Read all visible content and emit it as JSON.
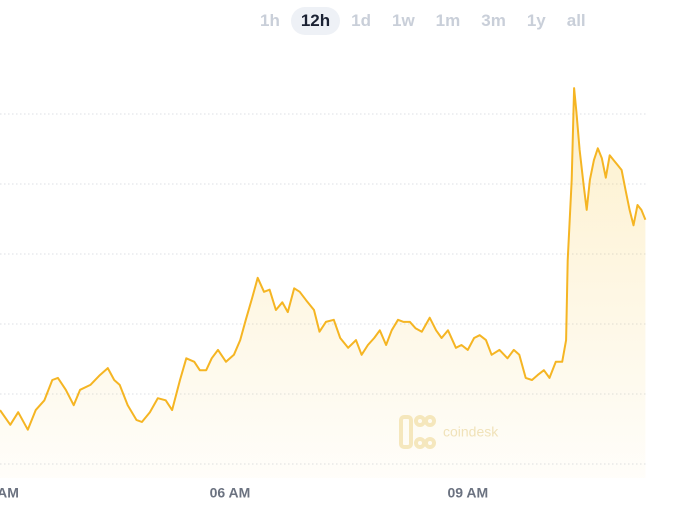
{
  "controls": {
    "ranges": [
      "1h",
      "12h",
      "1d",
      "1w",
      "1m",
      "3m",
      "1y",
      "all"
    ],
    "active": 1
  },
  "chart_data": {
    "type": "line",
    "watermark": "coindesk",
    "x": [
      3.1,
      3.23,
      3.33,
      3.45,
      3.55,
      3.66,
      3.76,
      3.83,
      3.93,
      4.03,
      4.11,
      4.24,
      4.36,
      4.46,
      4.54,
      4.61,
      4.71,
      4.82,
      4.89,
      4.99,
      5.09,
      5.19,
      5.27,
      5.37,
      5.45,
      5.55,
      5.62,
      5.7,
      5.77,
      5.85,
      5.95,
      6.05,
      6.13,
      6.2,
      6.28,
      6.35,
      6.43,
      6.5,
      6.58,
      6.66,
      6.73,
      6.81,
      6.88,
      6.96,
      7.06,
      7.13,
      7.21,
      7.31,
      7.39,
      7.49,
      7.59,
      7.66,
      7.74,
      7.82,
      7.89,
      7.97,
      8.04,
      8.12,
      8.19,
      8.27,
      8.34,
      8.42,
      8.52,
      8.6,
      8.67,
      8.75,
      8.85,
      8.92,
      9.0,
      9.08,
      9.15,
      9.23,
      9.3,
      9.4,
      9.5,
      9.58,
      9.65,
      9.73,
      9.81,
      9.88,
      9.96,
      10.03,
      10.11,
      10.19,
      10.24,
      10.26,
      10.31,
      10.34,
      10.37,
      10.41,
      10.46,
      10.5,
      10.54,
      10.59,
      10.64,
      10.69,
      10.74,
      10.79,
      10.84,
      10.89,
      10.94,
      10.99,
      11.04,
      11.09,
      11.14,
      11.19,
      11.24
    ],
    "series": [
      {
        "color": "#f5b523",
        "values": [
          0.77,
          0.56,
          0.74,
          0.49,
          0.77,
          0.91,
          1.2,
          1.23,
          1.06,
          0.84,
          1.06,
          1.13,
          1.27,
          1.37,
          1.2,
          1.13,
          0.84,
          0.63,
          0.6,
          0.74,
          0.94,
          0.91,
          0.77,
          1.2,
          1.51,
          1.46,
          1.34,
          1.34,
          1.51,
          1.63,
          1.46,
          1.56,
          1.77,
          2.06,
          2.37,
          2.66,
          2.46,
          2.49,
          2.2,
          2.31,
          2.17,
          2.51,
          2.46,
          2.34,
          2.2,
          1.89,
          2.03,
          2.06,
          1.8,
          1.66,
          1.77,
          1.56,
          1.7,
          1.8,
          1.91,
          1.7,
          1.91,
          2.06,
          2.03,
          2.03,
          1.94,
          1.89,
          2.09,
          1.91,
          1.8,
          1.91,
          1.66,
          1.7,
          1.63,
          1.8,
          1.84,
          1.77,
          1.56,
          1.63,
          1.51,
          1.63,
          1.56,
          1.23,
          1.2,
          1.27,
          1.34,
          1.23,
          1.46,
          1.46,
          1.77,
          2.91,
          4.06,
          5.37,
          5.03,
          4.49,
          3.99,
          3.63,
          4.06,
          4.34,
          4.51,
          4.37,
          4.09,
          4.41,
          4.34,
          4.27,
          4.2,
          3.91,
          3.63,
          3.41,
          3.7,
          3.63,
          3.49
        ]
      }
    ],
    "xlim": [
      3.1,
      11.26
    ],
    "ylim": [
      -0.2,
      5.8
    ],
    "xticks": [
      {
        "value": 3,
        "label": "AM"
      },
      {
        "value": 6,
        "label": "06 AM"
      },
      {
        "value": 9,
        "label": "09 AM"
      }
    ],
    "yticks": [
      0,
      1,
      2,
      3,
      4,
      5
    ],
    "grid": true
  }
}
